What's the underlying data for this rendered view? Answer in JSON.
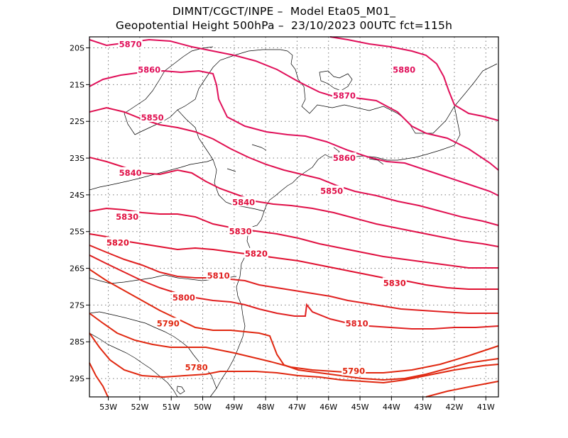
{
  "header": {
    "line1": "DIMNT/CGCT/INPE –  Model Eta05_M01_",
    "line2": "Geopotential Height 500hPa –  23/10/2023 00UTC fct=115h"
  },
  "map": {
    "lon_range": [
      -53.6,
      -40.6
    ],
    "lat_range": [
      -29.5,
      -19.7
    ],
    "lat_ticks": [
      {
        "value": -20,
        "label": "20S"
      },
      {
        "value": -21,
        "label": "21S"
      },
      {
        "value": -22,
        "label": "22S"
      },
      {
        "value": -23,
        "label": "23S"
      },
      {
        "value": -24,
        "label": "24S"
      },
      {
        "value": -25,
        "label": "25S"
      },
      {
        "value": -26,
        "label": "26S"
      },
      {
        "value": -27,
        "label": "27S"
      },
      {
        "value": -28,
        "label": "28S"
      },
      {
        "value": -29,
        "label": "29S"
      }
    ],
    "lon_ticks": [
      {
        "value": -53,
        "label": "53W"
      },
      {
        "value": -52,
        "label": "52W"
      },
      {
        "value": -51,
        "label": "51W"
      },
      {
        "value": -50,
        "label": "50W"
      },
      {
        "value": -49,
        "label": "49W"
      },
      {
        "value": -48,
        "label": "48W"
      },
      {
        "value": -47,
        "label": "47W"
      },
      {
        "value": -46,
        "label": "46W"
      },
      {
        "value": -45,
        "label": "45W"
      },
      {
        "value": -44,
        "label": "44W"
      },
      {
        "value": -43,
        "label": "43W"
      },
      {
        "value": -42,
        "label": "42W"
      },
      {
        "value": -41,
        "label": "41W"
      }
    ],
    "grid": "dotted",
    "contour_labels": [
      {
        "text": "5870",
        "lon": -52.3,
        "lat": -19.9,
        "color": "#e0105a"
      },
      {
        "text": "5860",
        "lon": -51.7,
        "lat": -20.6,
        "color": "#e0105a"
      },
      {
        "text": "5880",
        "lon": -43.6,
        "lat": -20.6,
        "color": "#e0105a"
      },
      {
        "text": "5870",
        "lon": -45.5,
        "lat": -21.3,
        "color": "#e0105a"
      },
      {
        "text": "5850",
        "lon": -51.6,
        "lat": -21.9,
        "color": "#e01050"
      },
      {
        "text": "5860",
        "lon": -45.5,
        "lat": -23.0,
        "color": "#e01050"
      },
      {
        "text": "5840",
        "lon": -52.3,
        "lat": -23.4,
        "color": "#e01048"
      },
      {
        "text": "5850",
        "lon": -45.9,
        "lat": -23.9,
        "color": "#e01048"
      },
      {
        "text": "5840",
        "lon": -48.7,
        "lat": -24.2,
        "color": "#e01040"
      },
      {
        "text": "5830",
        "lon": -52.4,
        "lat": -24.6,
        "color": "#e01040"
      },
      {
        "text": "5830",
        "lon": -48.8,
        "lat": -25.0,
        "color": "#e01038"
      },
      {
        "text": "5820",
        "lon": -52.7,
        "lat": -25.3,
        "color": "#e01030"
      },
      {
        "text": "5820",
        "lon": -48.3,
        "lat": -25.6,
        "color": "#e01030"
      },
      {
        "text": "5830",
        "lon": -43.9,
        "lat": -26.4,
        "color": "#e01028"
      },
      {
        "text": "5810",
        "lon": -49.5,
        "lat": -26.2,
        "color": "#e02020"
      },
      {
        "text": "5800",
        "lon": -50.6,
        "lat": -26.8,
        "color": "#e02020"
      },
      {
        "text": "5810",
        "lon": -45.1,
        "lat": -27.5,
        "color": "#e02020"
      },
      {
        "text": "5790",
        "lon": -51.1,
        "lat": -27.5,
        "color": "#e02810"
      },
      {
        "text": "5780",
        "lon": -50.2,
        "lat": -28.7,
        "color": "#e02810"
      },
      {
        "text": "5790",
        "lon": -45.2,
        "lat": -28.8,
        "color": "#e02810"
      }
    ]
  }
}
